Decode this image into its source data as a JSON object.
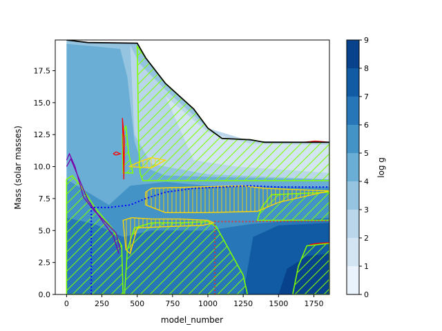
{
  "chart_data": {
    "type": "heatmap",
    "title": "",
    "xlabel": "model_number",
    "ylabel": "Mass (solar masses)",
    "xlim": [
      -80,
      1860
    ],
    "ylim": [
      0,
      19.9
    ],
    "xticks": [
      0,
      250,
      500,
      750,
      1000,
      1250,
      1500,
      1750
    ],
    "yticks": [
      0.0,
      2.5,
      5.0,
      7.5,
      10.0,
      12.5,
      15.0,
      17.5
    ],
    "xtick_labels": [
      "0",
      "250",
      "500",
      "750",
      "1000",
      "1250",
      "1500",
      "1750"
    ],
    "ytick_labels": [
      "0.0",
      "2.5",
      "5.0",
      "7.5",
      "10.0",
      "12.5",
      "15.0",
      "17.5"
    ],
    "colorbar": {
      "label": "log g",
      "levels": [
        0,
        1,
        2,
        3,
        4,
        5,
        6,
        7,
        8,
        9
      ],
      "tick_labels": [
        "0",
        "1",
        "2",
        "3",
        "4",
        "5",
        "6",
        "7",
        "8",
        "9"
      ],
      "colors": [
        "#eaf2fb",
        "#d3e4f3",
        "#bad6eb",
        "#94c4df",
        "#6aaed6",
        "#4493c7",
        "#2676b8",
        "#105ba4",
        "#08428d"
      ]
    },
    "star_surface_mass": [
      [
        0,
        19.9
      ],
      [
        150,
        19.7
      ],
      [
        500,
        19.65
      ],
      [
        560,
        18.5
      ],
      [
        700,
        16.5
      ],
      [
        900,
        14.5
      ],
      [
        1000,
        13.0
      ],
      [
        1100,
        12.2
      ],
      [
        1300,
        12.1
      ],
      [
        1400,
        11.9
      ],
      [
        1860,
        11.9
      ]
    ],
    "convective_regions": [
      {
        "name": "outer envelope",
        "points": [
          [
            500,
            19.4
          ],
          [
            560,
            18.5
          ],
          [
            700,
            16.5
          ],
          [
            900,
            14.5
          ],
          [
            1000,
            13.0
          ],
          [
            1100,
            12.2
          ],
          [
            1300,
            12.1
          ],
          [
            1400,
            11.9
          ],
          [
            1860,
            11.9
          ],
          [
            1860,
            8.9
          ],
          [
            1500,
            8.9
          ],
          [
            1000,
            8.9
          ],
          [
            600,
            8.9
          ],
          [
            540,
            8.9
          ],
          [
            520,
            9.5
          ],
          [
            510,
            12.0
          ],
          [
            505,
            16.0
          ],
          [
            500,
            19.4
          ]
        ]
      },
      {
        "name": "early core",
        "points": [
          [
            0,
            0
          ],
          [
            0,
            9.0
          ],
          [
            40,
            9.3
          ],
          [
            100,
            8.5
          ],
          [
            200,
            6.8
          ],
          [
            320,
            5.2
          ],
          [
            390,
            3.8
          ],
          [
            400,
            0
          ],
          [
            0,
            0
          ]
        ]
      },
      {
        "name": "second core",
        "points": [
          [
            410,
            0
          ],
          [
            430,
            3.5
          ],
          [
            480,
            5.2
          ],
          [
            600,
            5.6
          ],
          [
            800,
            5.6
          ],
          [
            1000,
            5.7
          ],
          [
            1060,
            5.3
          ],
          [
            1150,
            3.5
          ],
          [
            1250,
            1.5
          ],
          [
            1270,
            0.5
          ],
          [
            1280,
            0
          ],
          [
            410,
            0
          ]
        ]
      },
      {
        "name": "late shell",
        "points": [
          [
            1350,
            5.8
          ],
          [
            1380,
            6.8
          ],
          [
            1450,
            7.8
          ],
          [
            1860,
            8.0
          ],
          [
            1860,
            5.8
          ],
          [
            1350,
            5.8
          ]
        ]
      },
      {
        "name": "late core",
        "points": [
          [
            1600,
            0
          ],
          [
            1640,
            2.2
          ],
          [
            1700,
            3.8
          ],
          [
            1860,
            4.0
          ],
          [
            1860,
            0
          ],
          [
            1600,
            0
          ]
        ]
      },
      {
        "name": "flash",
        "points": [
          [
            400,
            9.5
          ],
          [
            395,
            12.5
          ],
          [
            420,
            13.2
          ],
          [
            440,
            11.0
          ],
          [
            470,
            9.5
          ],
          [
            400,
            9.5
          ]
        ]
      }
    ],
    "overshoot_regions": [
      [
        [
          400,
          5.8
        ],
        [
          460,
          6.0
        ],
        [
          600,
          5.9
        ],
        [
          800,
          5.9
        ],
        [
          1000,
          5.8
        ],
        [
          1040,
          5.6
        ],
        [
          960,
          5.4
        ],
        [
          700,
          5.3
        ],
        [
          500,
          5.2
        ],
        [
          450,
          3.2
        ],
        [
          420,
          3.5
        ],
        [
          400,
          5.8
        ]
      ],
      [
        [
          560,
          8.0
        ],
        [
          600,
          8.3
        ],
        [
          900,
          8.4
        ],
        [
          1250,
          8.5
        ],
        [
          1400,
          8.3
        ],
        [
          1860,
          8.1
        ],
        [
          1500,
          7.2
        ],
        [
          1350,
          6.5
        ],
        [
          1000,
          6.4
        ],
        [
          700,
          6.4
        ],
        [
          560,
          7.0
        ],
        [
          560,
          8.0
        ]
      ],
      [
        [
          440,
          10.0
        ],
        [
          520,
          10.4
        ],
        [
          600,
          10.7
        ],
        [
          700,
          10.5
        ],
        [
          600,
          9.9
        ],
        [
          440,
          10.0
        ]
      ]
    ],
    "red_contours": [
      [
        [
          330,
          11.0
        ],
        [
          350,
          11.15
        ],
        [
          380,
          11.0
        ],
        [
          350,
          10.9
        ],
        [
          330,
          11.0
        ]
      ],
      [
        [
          395,
          13.8
        ],
        [
          400,
          12.0
        ],
        [
          405,
          9.0
        ],
        [
          410,
          12.0
        ],
        [
          395,
          13.8
        ]
      ],
      [
        [
          1680,
          11.9
        ],
        [
          1760,
          12.0
        ],
        [
          1860,
          11.9
        ]
      ],
      [
        [
          1720,
          3.9
        ],
        [
          1780,
          4.0
        ],
        [
          1860,
          4.05
        ]
      ]
    ],
    "purple_curves": [
      [
        [
          0,
          10.5
        ],
        [
          20,
          11.0
        ],
        [
          60,
          10.0
        ],
        [
          120,
          7.6
        ],
        [
          200,
          6.5
        ],
        [
          290,
          5.5
        ],
        [
          350,
          4.8
        ],
        [
          380,
          3.5
        ]
      ],
      [
        [
          0,
          10.0
        ],
        [
          30,
          10.6
        ],
        [
          90,
          9.0
        ],
        [
          150,
          7.4
        ],
        [
          250,
          5.8
        ],
        [
          330,
          4.6
        ],
        [
          370,
          3.2
        ]
      ]
    ],
    "blue_dotted": [
      [
        175,
        0
      ],
      [
        175,
        6.8
      ],
      [
        300,
        6.8
      ],
      [
        450,
        7.0
      ],
      [
        560,
        7.5
      ],
      [
        700,
        8.0
      ],
      [
        900,
        8.3
      ],
      [
        1300,
        8.5
      ],
      [
        1500,
        8.4
      ],
      [
        1860,
        8.4
      ]
    ],
    "red_dotted": [
      [
        1050,
        0
      ],
      [
        1050,
        5.7
      ],
      [
        1300,
        5.7
      ],
      [
        1860,
        5.75
      ]
    ],
    "black_curve": [
      [
        0,
        19.9
      ],
      [
        150,
        19.7
      ],
      [
        500,
        19.65
      ],
      [
        560,
        18.5
      ],
      [
        700,
        16.5
      ],
      [
        900,
        14.5
      ],
      [
        1000,
        13.0
      ],
      [
        1100,
        12.2
      ],
      [
        1300,
        12.1
      ],
      [
        1400,
        11.9
      ],
      [
        1860,
        11.9
      ]
    ]
  }
}
